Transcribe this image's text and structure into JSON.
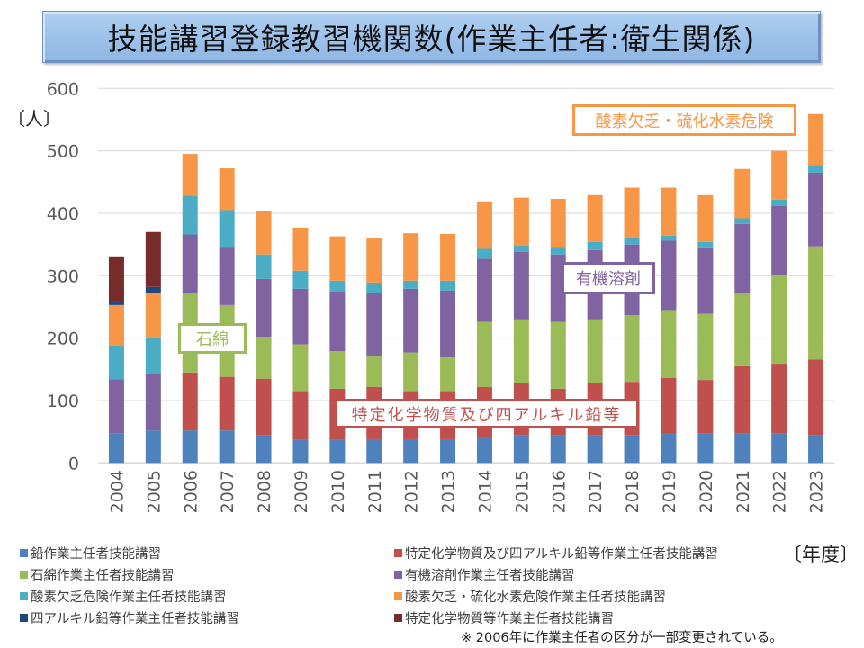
{
  "title": "技能講習登録教習機関数(作業主任者:衛生関係)",
  "y_unit_label": "〔人〕",
  "x_unit_label": "〔年度〕",
  "note": "※  2006年に作業主任者の区分が一部変更されている。",
  "callouts": {
    "asbestos": "石綿",
    "tokutei": "特定化学物質及び四アルキル鉛等",
    "organic": "有機溶剤",
    "oxygen_h2s": "酸素欠乏・硫化水素危険"
  },
  "chart_data": {
    "type": "bar",
    "stacked": true,
    "title": "技能講習登録教習機関数(作業主任者:衛生関係)",
    "xlabel": "〔年度〕",
    "ylabel": "〔人〕",
    "ylim": [
      0,
      600
    ],
    "yticks": [
      0,
      100,
      200,
      300,
      400,
      500,
      600
    ],
    "grid": true,
    "legend_position": "bottom",
    "categories": [
      "2004",
      "2005",
      "2006",
      "2007",
      "2008",
      "2009",
      "2010",
      "2011",
      "2012",
      "2013",
      "2014",
      "2015",
      "2016",
      "2017",
      "2018",
      "2019",
      "2020",
      "2021",
      "2022",
      "2023"
    ],
    "series": [
      {
        "name": "鉛作業主任者技能講習",
        "color": "#4f81bd",
        "values": [
          47,
          52,
          52,
          52,
          45,
          37,
          37,
          38,
          38,
          38,
          42,
          44,
          44,
          44,
          44,
          48,
          47,
          47,
          47,
          44
        ]
      },
      {
        "name": "特定化学物質及び四アルキル鉛等作業主任者技能講習",
        "color": "#c0504d",
        "values": [
          0,
          0,
          93,
          86,
          90,
          78,
          82,
          84,
          77,
          77,
          80,
          84,
          75,
          84,
          86,
          88,
          86,
          108,
          112,
          122
        ]
      },
      {
        "name": "石綿作業主任者技能講習",
        "color": "#9bbb59",
        "values": [
          0,
          0,
          127,
          115,
          67,
          75,
          60,
          50,
          62,
          54,
          104,
          102,
          107,
          102,
          107,
          109,
          106,
          117,
          142,
          181
        ]
      },
      {
        "name": "有機溶剤作業主任者技能講習",
        "color": "#8064a2",
        "values": [
          87,
          90,
          94,
          92,
          93,
          89,
          96,
          100,
          102,
          107,
          101,
          108,
          108,
          111,
          113,
          111,
          105,
          111,
          111,
          118
        ]
      },
      {
        "name": "酸素欠乏危険作業主任者技能講習",
        "color": "#4bacc6",
        "values": [
          54,
          59,
          62,
          60,
          39,
          29,
          17,
          17,
          13,
          16,
          16,
          10,
          11,
          13,
          11,
          8,
          10,
          9,
          10,
          12
        ]
      },
      {
        "name": "酸素欠乏・硫化水素危険作業主任者技能講習",
        "color": "#f79646",
        "values": [
          65,
          72,
          67,
          67,
          69,
          69,
          71,
          72,
          76,
          75,
          76,
          77,
          78,
          75,
          80,
          77,
          75,
          79,
          78,
          82
        ]
      },
      {
        "name": "四アルキル鉛等作業主任者技能講習",
        "color": "#1f497d",
        "values": [
          7,
          9,
          0,
          0,
          0,
          0,
          0,
          0,
          0,
          0,
          0,
          0,
          0,
          0,
          0,
          0,
          0,
          0,
          0,
          0
        ]
      },
      {
        "name": "特定化学物質等作業主任者技能講習",
        "color": "#772c2a",
        "values": [
          71,
          88,
          0,
          0,
          0,
          0,
          0,
          0,
          0,
          0,
          0,
          0,
          0,
          0,
          0,
          0,
          0,
          0,
          0,
          0
        ]
      }
    ],
    "legend_order": [
      0,
      1,
      2,
      3,
      4,
      5,
      6,
      7
    ]
  }
}
